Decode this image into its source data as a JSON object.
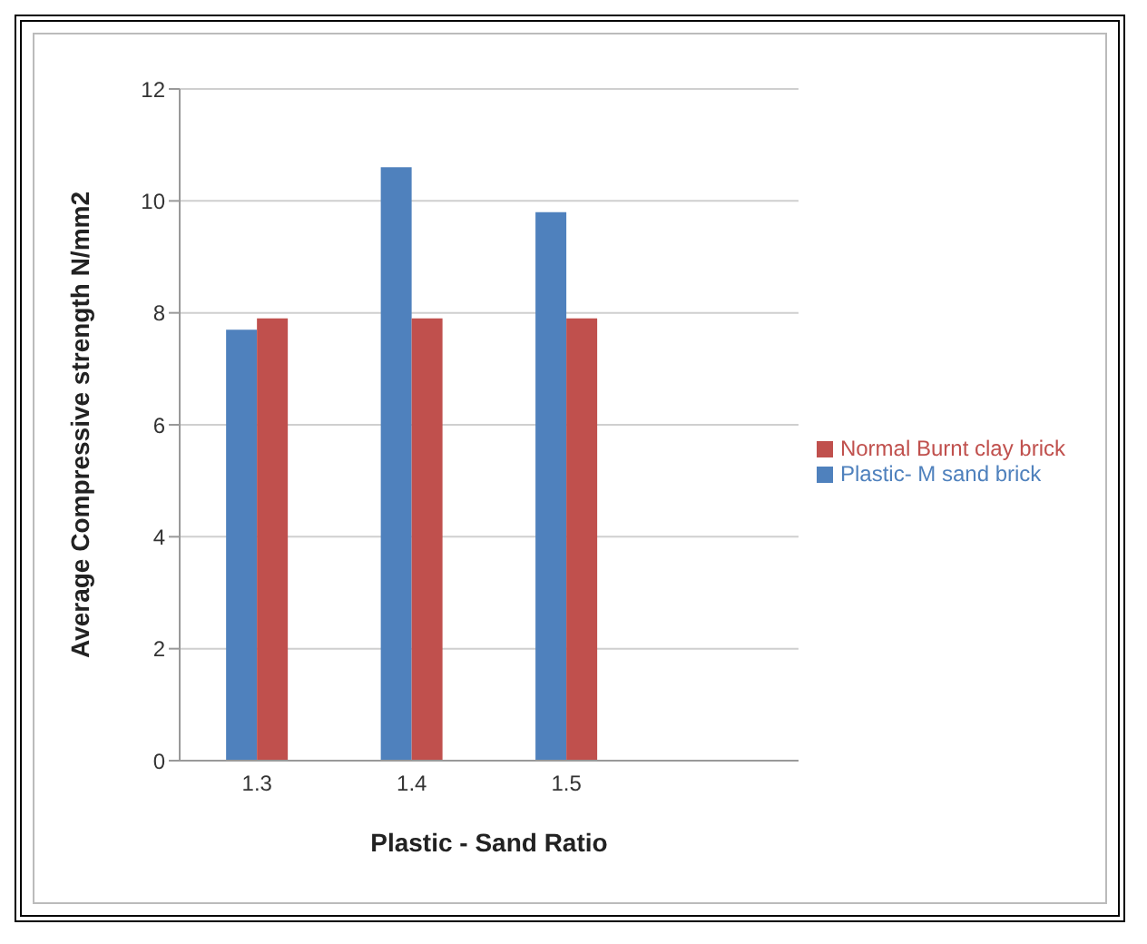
{
  "chart_data": {
    "type": "bar",
    "xlabel": "Plastic - Sand Ratio",
    "ylabel": "Average Compressive  strength N/mm2",
    "categories": [
      "1.3",
      "1.4",
      "1.5",
      null
    ],
    "series": [
      {
        "name": "Plastic- M sand brick",
        "color": "#4f81bd",
        "values": [
          7.7,
          10.6,
          9.8,
          null
        ]
      },
      {
        "name": "Normal Burnt clay brick",
        "color": "#c0504d",
        "values": [
          7.9,
          7.9,
          7.9,
          null
        ]
      }
    ],
    "ylim": [
      0,
      12
    ],
    "yticks": [
      0,
      2,
      4,
      6,
      8,
      10,
      12
    ],
    "grid": "y",
    "legend": "right"
  }
}
